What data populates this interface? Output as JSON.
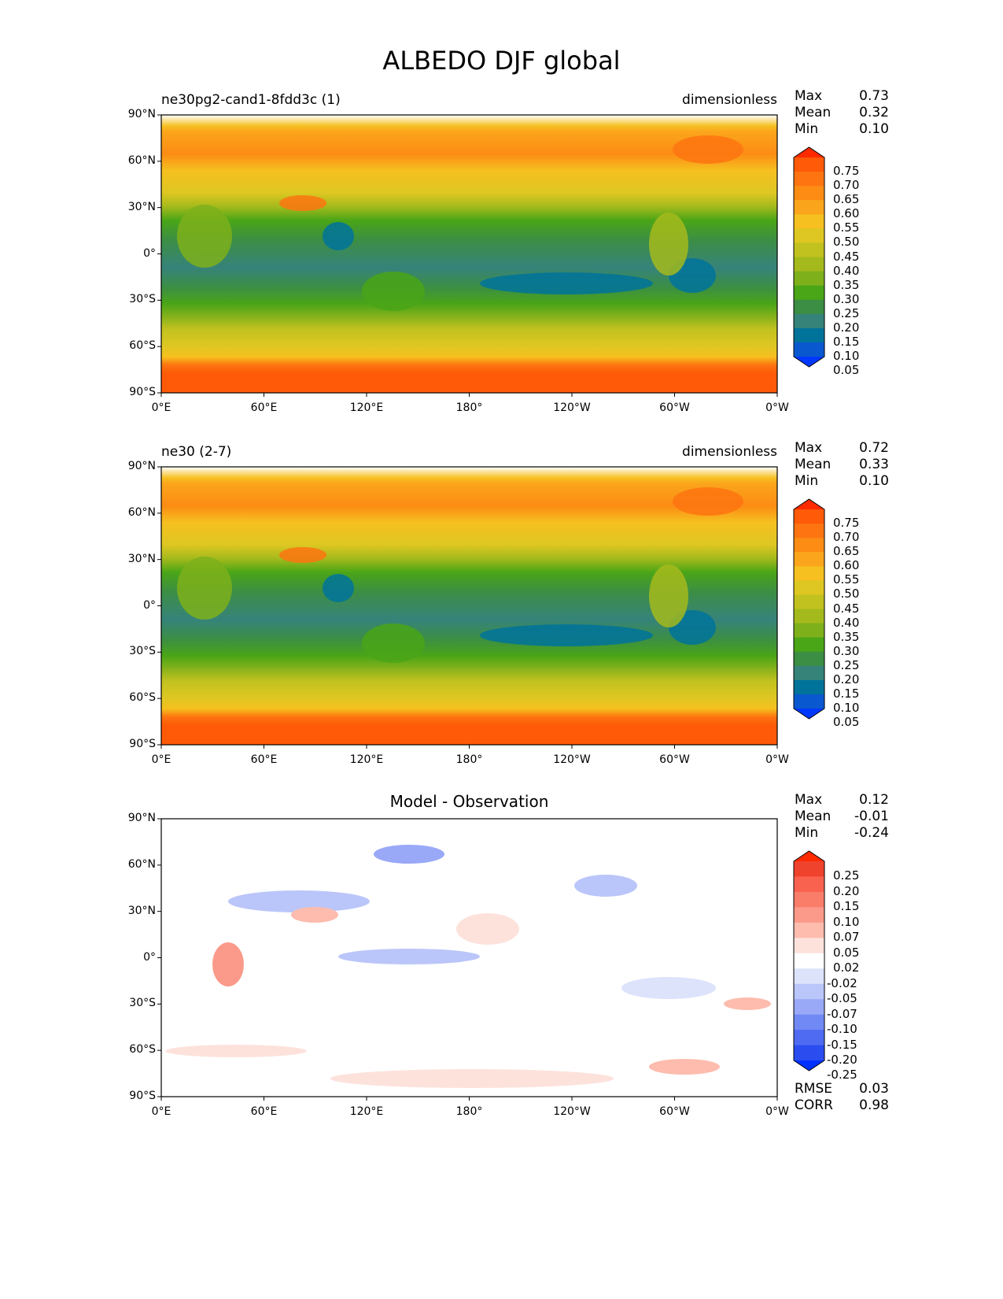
{
  "title": "ALBEDO DJF global",
  "axes": {
    "lat_ticks": [
      "90°N",
      "60°N",
      "30°N",
      "0°",
      "30°S",
      "60°S",
      "90°S"
    ],
    "lon_ticks": [
      "0°E",
      "60°E",
      "120°E",
      "180°",
      "120°W",
      "60°W",
      "0°W"
    ]
  },
  "stat_labels": {
    "max": "Max",
    "mean": "Mean",
    "min": "Min",
    "rmse": "RMSE",
    "corr": "CORR"
  },
  "panels": [
    {
      "title_left": "ne30pg2-cand1-8fdd3c (1)",
      "title_center": "",
      "title_right": "dimensionless",
      "stats": {
        "max": "0.73",
        "mean": "0.32",
        "min": "0.10"
      },
      "colorbar": {
        "labels": [
          "0.75",
          "0.70",
          "0.65",
          "0.60",
          "0.55",
          "0.50",
          "0.45",
          "0.40",
          "0.35",
          "0.30",
          "0.25",
          "0.20",
          "0.15",
          "0.10",
          "0.05"
        ],
        "colors": [
          "#ff2a00",
          "#fe5a08",
          "#fd7410",
          "#fc8c14",
          "#fba51c",
          "#f6c020",
          "#dec722",
          "#c1c11f",
          "#a4ba1c",
          "#7eb01b",
          "#4aa517",
          "#3c8e44",
          "#36837a",
          "#00739b",
          "#0a58cf",
          "#0038ff"
        ]
      }
    },
    {
      "title_left": "ne30 (2-7)",
      "title_center": "",
      "title_right": "dimensionless",
      "stats": {
        "max": "0.72",
        "mean": "0.33",
        "min": "0.10"
      },
      "colorbar": {
        "labels": [
          "0.75",
          "0.70",
          "0.65",
          "0.60",
          "0.55",
          "0.50",
          "0.45",
          "0.40",
          "0.35",
          "0.30",
          "0.25",
          "0.20",
          "0.15",
          "0.10",
          "0.05"
        ],
        "colors": [
          "#ff2a00",
          "#fe5a08",
          "#fd7410",
          "#fc8c14",
          "#fba51c",
          "#f6c020",
          "#dec722",
          "#c1c11f",
          "#a4ba1c",
          "#7eb01b",
          "#4aa517",
          "#3c8e44",
          "#36837a",
          "#00739b",
          "#0a58cf",
          "#0038ff"
        ]
      }
    },
    {
      "title_left": "",
      "title_center": "Model - Observation",
      "title_right": "",
      "stats": {
        "max": "0.12",
        "mean": "-0.01",
        "min": "-0.24",
        "rmse": "0.03",
        "corr": "0.98"
      },
      "colorbar": {
        "labels": [
          "0.25",
          "0.20",
          "0.15",
          "0.10",
          "0.07",
          "0.05",
          "0.02",
          "-0.02",
          "-0.05",
          "-0.07",
          "-0.10",
          "-0.15",
          "-0.20",
          "-0.25"
        ],
        "colors": [
          "#ff2a00",
          "#f0432e",
          "#fa6250",
          "#fa7d6a",
          "#fb9a8a",
          "#fdbcae",
          "#fde2dc",
          "#ffffff",
          "#dde3fb",
          "#bac6fa",
          "#99a9f8",
          "#7189f5",
          "#4e6bf2",
          "#2b4df0",
          "#0032ff"
        ]
      }
    }
  ],
  "chart_data": [
    {
      "type": "heatmap",
      "title": "ne30pg2-cand1-8fdd3c (1)",
      "units": "dimensionless",
      "xlim": [
        0,
        360
      ],
      "ylim": [
        -90,
        90
      ],
      "max": 0.73,
      "mean": 0.32,
      "min": 0.1
    },
    {
      "type": "heatmap",
      "title": "ne30 (2-7)",
      "units": "dimensionless",
      "xlim": [
        0,
        360
      ],
      "ylim": [
        -90,
        90
      ],
      "max": 0.72,
      "mean": 0.33,
      "min": 0.1
    },
    {
      "type": "heatmap",
      "title": "Model - Observation",
      "xlim": [
        0,
        360
      ],
      "ylim": [
        -90,
        90
      ],
      "max": 0.12,
      "mean": -0.01,
      "min": -0.24,
      "rmse": 0.03,
      "corr": 0.98
    }
  ]
}
